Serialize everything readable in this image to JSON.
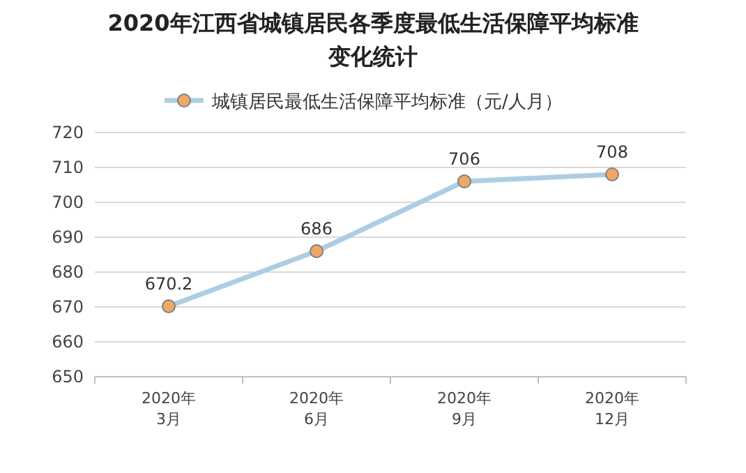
{
  "chart_data": {
    "type": "line",
    "title": "2020年江西省城镇居民各季度最低生活保障平均标准",
    "subtitle": "变化统计",
    "categories": [
      "2020年\n3月",
      "2020年\n6月",
      "2020年\n9月",
      "2020年\n12月"
    ],
    "series": [
      {
        "name": "城镇居民最低生活保障平均标准（元/人月）",
        "color": "#adcde3",
        "values": [
          670.2,
          686,
          706,
          708
        ]
      }
    ],
    "ylim": [
      650,
      720
    ],
    "yticks": [
      650,
      660,
      670,
      680,
      690,
      700,
      710,
      720
    ],
    "grid": "y",
    "legend": "top",
    "marker": "circle",
    "data_labels": true
  }
}
